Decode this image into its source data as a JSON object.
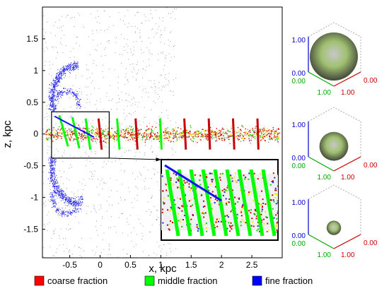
{
  "chart_data": {
    "type": "scatter",
    "title": "",
    "xlabel": "x, kpc",
    "ylabel": "z, kpc",
    "xlim": [
      -0.95,
      3.0
    ],
    "ylim": [
      -1.95,
      2.0
    ],
    "x_ticks": [
      "-0.5",
      "0",
      "0.5",
      "1",
      "1.5",
      "2",
      "2.5"
    ],
    "x_tick_values": [
      -0.5,
      0,
      0.5,
      1,
      1.5,
      2,
      2.5
    ],
    "y_ticks": [
      "1.5",
      "1",
      "0.5",
      "0",
      "-0.5",
      "-1",
      "-1.5"
    ],
    "y_tick_values": [
      1.5,
      1,
      0.5,
      0,
      -0.5,
      -1,
      -1.5
    ],
    "grid": false,
    "inset_region": {
      "x": [
        -0.8,
        0.15
      ],
      "z": [
        -0.38,
        0.35
      ]
    },
    "bands": [
      {
        "x": -0.6,
        "z": 0.05,
        "tilt": 0.28,
        "dominant": "middle"
      },
      {
        "x": -0.4,
        "z": 0.02,
        "tilt": 0.22,
        "dominant": "middle"
      },
      {
        "x": -0.2,
        "z": 0.0,
        "tilt": 0.15,
        "dominant": "middle"
      },
      {
        "x": 0.0,
        "z": 0.0,
        "tilt": 0.1,
        "dominant": "coarse"
      },
      {
        "x": 0.3,
        "z": 0.0,
        "tilt": 0.08,
        "dominant": "middle"
      },
      {
        "x": 0.6,
        "z": 0.0,
        "tilt": 0.06,
        "dominant": "coarse"
      },
      {
        "x": 1.0,
        "z": 0.0,
        "tilt": 0.05,
        "dominant": "middle"
      },
      {
        "x": 1.4,
        "z": 0.0,
        "tilt": 0.05,
        "dominant": "coarse"
      },
      {
        "x": 1.8,
        "z": 0.0,
        "tilt": 0.04,
        "dominant": "coarse"
      },
      {
        "x": 2.2,
        "z": 0.0,
        "tilt": 0.04,
        "dominant": "coarse"
      },
      {
        "x": 2.6,
        "z": 0.0,
        "tilt": 0.03,
        "dominant": "coarse"
      }
    ],
    "legend": {
      "position": "bottom",
      "entries": [
        {
          "label": "coarse fraction",
          "color": "#ff0000"
        },
        {
          "label": "middle fraction",
          "color": "#00ff00"
        },
        {
          "label": "fine fraction",
          "color": "#0000ff"
        }
      ]
    },
    "color_cubes": [
      {
        "max_label": "1.00",
        "zero_label": "0.00",
        "scale": 1.0
      },
      {
        "max_label": "1.00",
        "zero_label": "0.00",
        "scale": 0.6
      },
      {
        "max_label": "1.00",
        "zero_label": "0.00",
        "scale": 0.3
      }
    ]
  }
}
